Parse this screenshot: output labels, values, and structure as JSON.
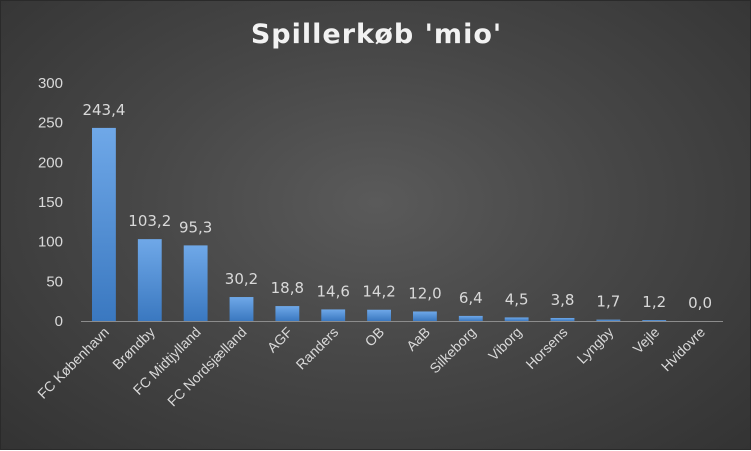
{
  "chart_data": {
    "type": "bar",
    "title": "Spillerkøb 'mio'",
    "categories": [
      "FC København",
      "Brøndby",
      "FC Midtjylland",
      "FC Nordsjælland",
      "AGF",
      "Randers",
      "OB",
      "AaB",
      "Silkeborg",
      "Viborg",
      "Horsens",
      "Lyngby",
      "Vejle",
      "Hvidovre"
    ],
    "values": [
      243.4,
      103.2,
      95.3,
      30.2,
      18.8,
      14.6,
      14.2,
      12.0,
      6.4,
      4.5,
      3.8,
      1.7,
      1.2,
      0.0
    ],
    "data_labels": [
      "243,4",
      "103,2",
      "95,3",
      "30,2",
      "18,8",
      "14,6",
      "14,2",
      "12,0",
      "6,4",
      "4,5",
      "3,8",
      "1,7",
      "1,2",
      "0,0"
    ],
    "yticks": [
      0,
      50,
      100,
      150,
      200,
      250,
      300
    ],
    "ylim": [
      0,
      300
    ],
    "xlabel": "",
    "ylabel": "",
    "grid": false,
    "legend": "none",
    "colors": {
      "bar_top": "#6fa8e8",
      "bar_bottom": "#3a78c0",
      "axis": "#8c8c8c"
    }
  }
}
